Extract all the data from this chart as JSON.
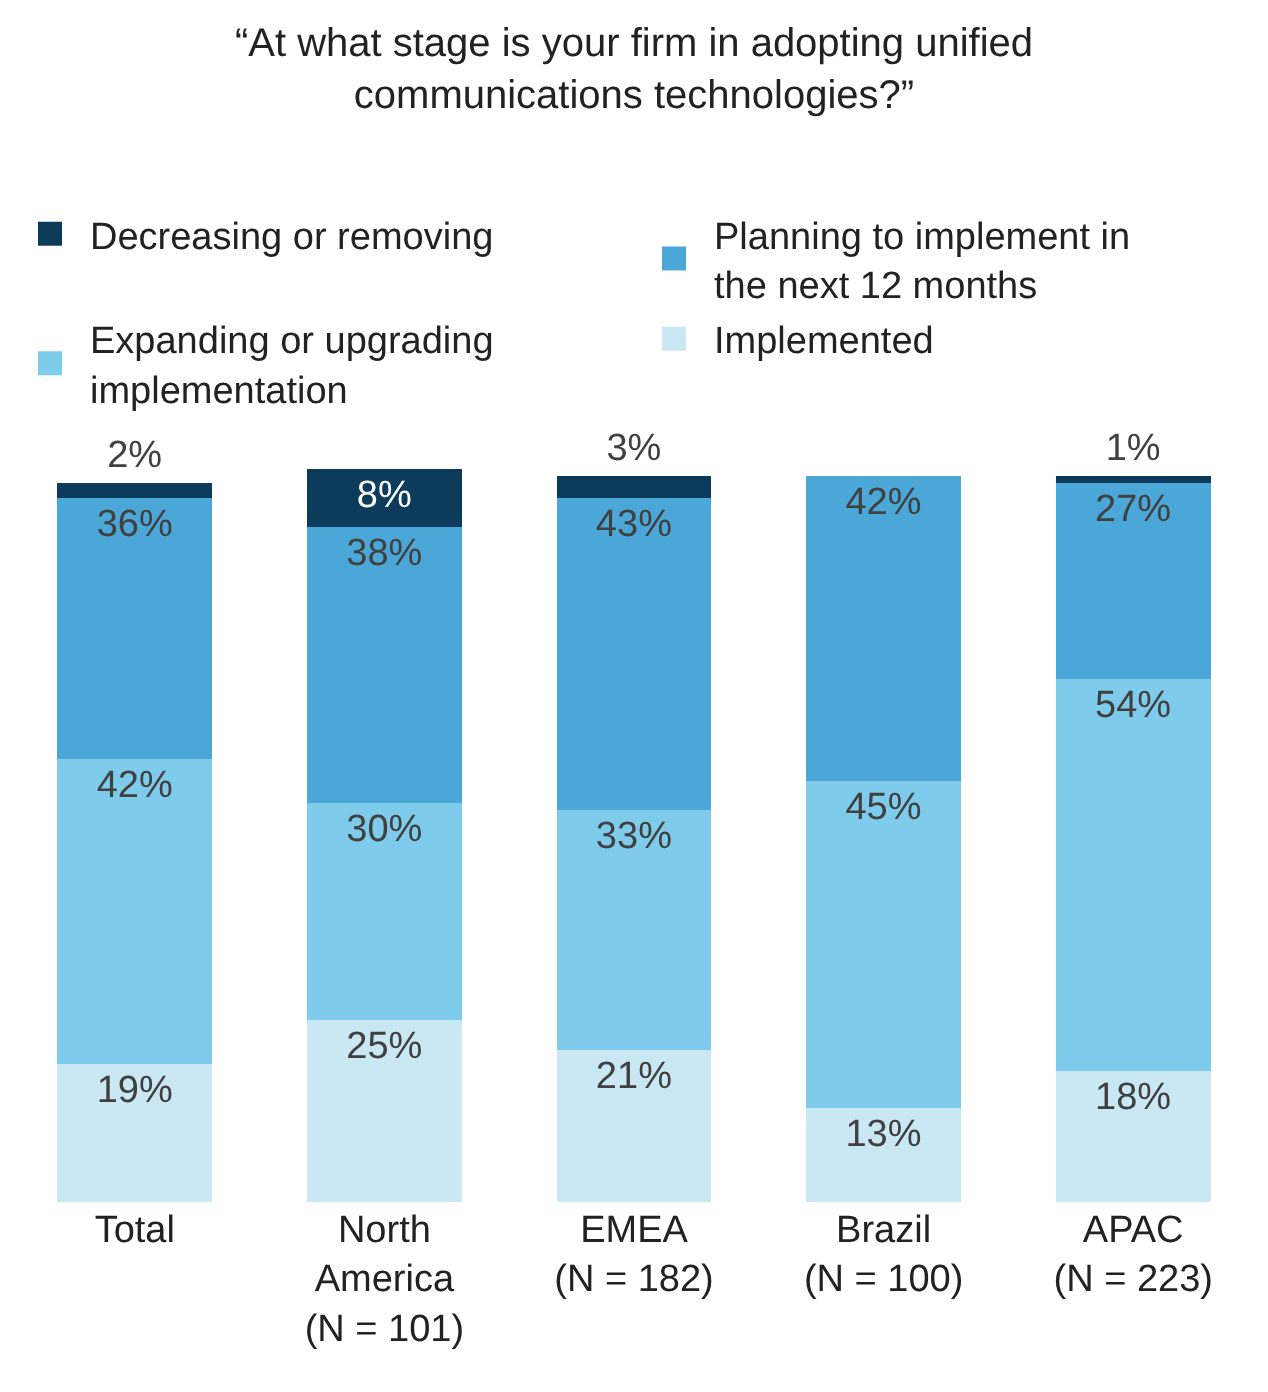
{
  "chart_data": {
    "type": "bar",
    "title": "“At what stage is your firm in adopting unified communications technologies?”",
    "categories": [
      "Total",
      "North America (N = 101)",
      "EMEA (N = 182)",
      "Brazil (N = 100)",
      "APAC (N = 223)"
    ],
    "stacked": true,
    "legend": "top",
    "series": [
      {
        "name": "Implemented",
        "color": "#c9e8f4",
        "values": [
          19,
          25,
          21,
          13,
          18
        ],
        "value_labels": [
          "19%",
          "25%",
          "21%",
          "13%",
          "18%"
        ]
      },
      {
        "name": "Expanding or upgrading implementation",
        "color": "#7fcbec",
        "values": [
          42,
          30,
          33,
          45,
          54
        ],
        "value_labels": [
          "42%",
          "30%",
          "33%",
          "45%",
          "54%"
        ]
      },
      {
        "name": "Planning to implement in the next 12 months",
        "color": "#4ba7d7",
        "values": [
          36,
          38,
          43,
          42,
          27
        ],
        "value_labels": [
          "36%",
          "38%",
          "43%",
          "42%",
          "27%"
        ]
      },
      {
        "name": "Decreasing or removing",
        "color": "#0c3b5b",
        "values": [
          2,
          8,
          3,
          null,
          1
        ],
        "value_labels": [
          "2%",
          "8%",
          "3%",
          null,
          "1%"
        ]
      }
    ]
  }
}
